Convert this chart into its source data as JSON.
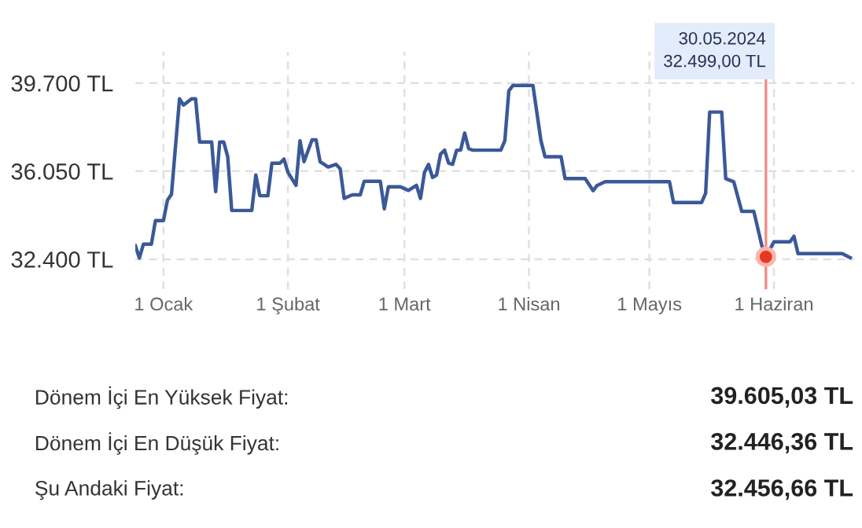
{
  "chart_data": {
    "type": "line",
    "x": [
      "2023-12-25",
      "2023-12-26",
      "2023-12-27",
      "2023-12-29",
      "2023-12-30",
      "2024-01-01",
      "2024-01-02",
      "2024-01-03",
      "2024-01-05",
      "2024-01-06",
      "2024-01-08",
      "2024-01-09",
      "2024-01-10",
      "2024-01-13",
      "2024-01-14",
      "2024-01-15",
      "2024-01-16",
      "2024-01-17",
      "2024-01-18",
      "2024-01-23",
      "2024-01-24",
      "2024-01-25",
      "2024-01-27",
      "2024-01-28",
      "2024-01-30",
      "2024-01-31",
      "2024-02-01",
      "2024-02-03",
      "2024-02-04",
      "2024-02-05",
      "2024-02-07",
      "2024-02-08",
      "2024-02-09",
      "2024-02-10",
      "2024-02-11",
      "2024-02-13",
      "2024-02-14",
      "2024-02-15",
      "2024-02-17",
      "2024-02-19",
      "2024-02-20",
      "2024-02-24",
      "2024-02-25",
      "2024-02-26",
      "2024-02-29",
      "2024-03-02",
      "2024-03-04",
      "2024-03-05",
      "2024-03-06",
      "2024-03-07",
      "2024-03-08",
      "2024-03-09",
      "2024-03-10",
      "2024-03-11",
      "2024-03-12",
      "2024-03-13",
      "2024-03-14",
      "2024-03-15",
      "2024-03-16",
      "2024-03-17",
      "2024-03-18",
      "2024-03-25",
      "2024-03-26",
      "2024-03-27",
      "2024-03-28",
      "2024-04-02",
      "2024-04-04",
      "2024-04-05",
      "2024-04-09",
      "2024-04-10",
      "2024-04-15",
      "2024-04-17",
      "2024-04-18",
      "2024-04-20",
      "2024-05-06",
      "2024-05-07",
      "2024-05-14",
      "2024-05-15",
      "2024-05-16",
      "2024-05-19",
      "2024-05-20",
      "2024-05-22",
      "2024-05-24",
      "2024-05-27",
      "2024-05-29",
      "2024-05-30",
      "2024-06-01",
      "2024-06-05",
      "2024-06-06",
      "2024-06-07",
      "2024-06-18",
      "2024-06-20"
    ],
    "series": [
      {
        "color": "#3b5998",
        "values": [
          32960,
          32450,
          33020,
          33020,
          34000,
          34000,
          34850,
          35090,
          39050,
          38790,
          39050,
          39050,
          37260,
          37260,
          35200,
          37260,
          37260,
          36650,
          34420,
          34420,
          35890,
          35030,
          35030,
          36380,
          36380,
          36550,
          36000,
          35460,
          37310,
          36440,
          37350,
          37350,
          36440,
          36330,
          36220,
          36330,
          36150,
          34920,
          35070,
          35070,
          35630,
          35630,
          34490,
          35400,
          35400,
          35250,
          35460,
          34920,
          36000,
          36330,
          35790,
          35890,
          36760,
          36920,
          36380,
          36330,
          36920,
          36920,
          37630,
          36980,
          36920,
          36920,
          37310,
          39380,
          39600,
          39600,
          37310,
          36650,
          36650,
          35740,
          35740,
          35240,
          35460,
          35610,
          35610,
          34750,
          34750,
          35140,
          38500,
          38500,
          35740,
          35610,
          34380,
          34380,
          32960,
          32500,
          33120,
          33120,
          33350,
          32630,
          32630,
          32460
        ]
      }
    ],
    "xlim": [
      "2023-12-25",
      "2024-06-21"
    ],
    "xticks": [
      {
        "value": "2024-01-01",
        "label": "1 Ocak"
      },
      {
        "value": "2024-02-01",
        "label": "1 Şubat"
      },
      {
        "value": "2024-03-01",
        "label": "1 Mart"
      },
      {
        "value": "2024-04-01",
        "label": "1 Nisan"
      },
      {
        "value": "2024-05-01",
        "label": "1 Mayıs"
      },
      {
        "value": "2024-06-01",
        "label": "1 Haziran"
      }
    ],
    "ylim": [
      31150,
      41000
    ],
    "yticks": [
      {
        "value": 32400,
        "label": "32.400 TL"
      },
      {
        "value": 36050,
        "label": "36.050 TL"
      },
      {
        "value": 39700,
        "label": "39.700 TL"
      }
    ],
    "grid": true,
    "line_style": "solid",
    "ref_lines": [
      {
        "axis": "x",
        "value": "2024-05-30",
        "color": "#f28b82"
      }
    ],
    "annotations": [
      "30.05.2024\n32.499,00 TL",
      "Dönem İçi En Yüksek Fiyat:",
      "39.605,03 TL",
      "Dönem İçi En Düşük Fiyat:",
      "32.446,36 TL",
      "Şu Andaki Fiyat:",
      "32.456,66 TL"
    ]
  }
}
